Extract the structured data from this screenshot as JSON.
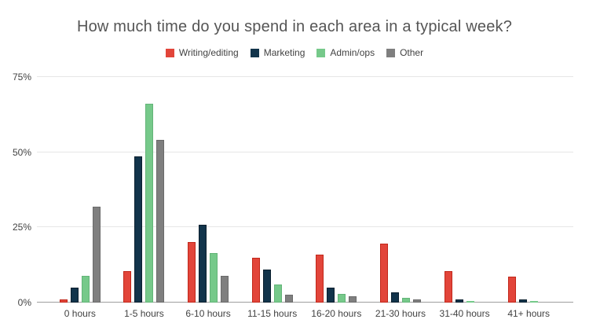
{
  "chart_data": {
    "type": "bar",
    "title": "How much time do you spend in each area in a typical week?",
    "xlabel": "",
    "ylabel": "",
    "categories": [
      "0 hours",
      "1-5 hours",
      "6-10 hours",
      "11-15 hours",
      "16-20 hours",
      "21-30 hours",
      "31-40 hours",
      "41+ hours"
    ],
    "series": [
      {
        "name": "Writing/editing",
        "color": "#e2453a",
        "border_color": "#c1271a",
        "values": [
          1,
          10.5,
          20,
          15,
          16,
          19.5,
          10.5,
          8.5
        ]
      },
      {
        "name": "Marketing",
        "color": "#12344b",
        "border_color": "#0a1f2e",
        "values": [
          5,
          48.5,
          26,
          11,
          5,
          3.5,
          1,
          1
        ]
      },
      {
        "name": "Admin/ops",
        "color": "#76c98a",
        "border_color": "#63b478",
        "values": [
          9,
          66,
          16.5,
          6,
          3,
          1.5,
          0.5,
          0.5
        ]
      },
      {
        "name": "Other",
        "color": "#7f7f7f",
        "border_color": "#6a6a6a",
        "values": [
          32,
          54,
          9,
          2.5,
          2,
          1,
          0,
          0
        ]
      }
    ],
    "y_ticks": [
      {
        "label": "0%",
        "value": 0
      },
      {
        "label": "25%",
        "value": 25
      },
      {
        "label": "50%",
        "value": 50
      },
      {
        "label": "75%",
        "value": 75
      }
    ],
    "ylim": [
      0,
      78.4
    ],
    "grid": true,
    "legend_position": "top",
    "values_unit": "percent"
  },
  "style": {
    "title_color": "#555555",
    "label_color": "#424242",
    "gridline_color": "#e6e6e6",
    "baseline_color": "#9e9e9e",
    "background": "#ffffff"
  }
}
